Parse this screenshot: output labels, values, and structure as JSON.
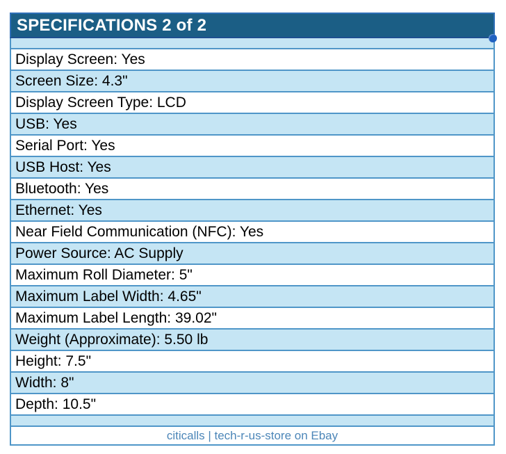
{
  "header": {
    "title": "SPECIFICATIONS 2 of 2",
    "marker_icon": "blue-dot"
  },
  "rows": [
    "Display Screen: Yes",
    "Screen Size: 4.3\"",
    "Display Screen Type: LCD",
    "USB: Yes",
    "Serial Port: Yes",
    "USB Host: Yes",
    "Bluetooth: Yes",
    "Ethernet: Yes",
    "Near Field Communication (NFC): Yes",
    "Power Source: AC Supply",
    "Maximum Roll Diameter: 5\"",
    "Maximum Label Width: 4.65\"",
    "Maximum Label Length: 39.02\"",
    "Weight (Approximate): 5.50 lb",
    "Height: 7.5\"",
    "Width: 8\"",
    "Depth: 10.5\""
  ],
  "footer": {
    "text": "citicalls | tech-r-us-store on Ebay"
  },
  "colors": {
    "header_bg": "#1b5e85",
    "header_border": "#2e6fb7",
    "table_border": "#4f96c8",
    "alt_row_bg": "#c5e5f4",
    "footer_link": "#4c86b8",
    "dot": "#2061c1"
  }
}
